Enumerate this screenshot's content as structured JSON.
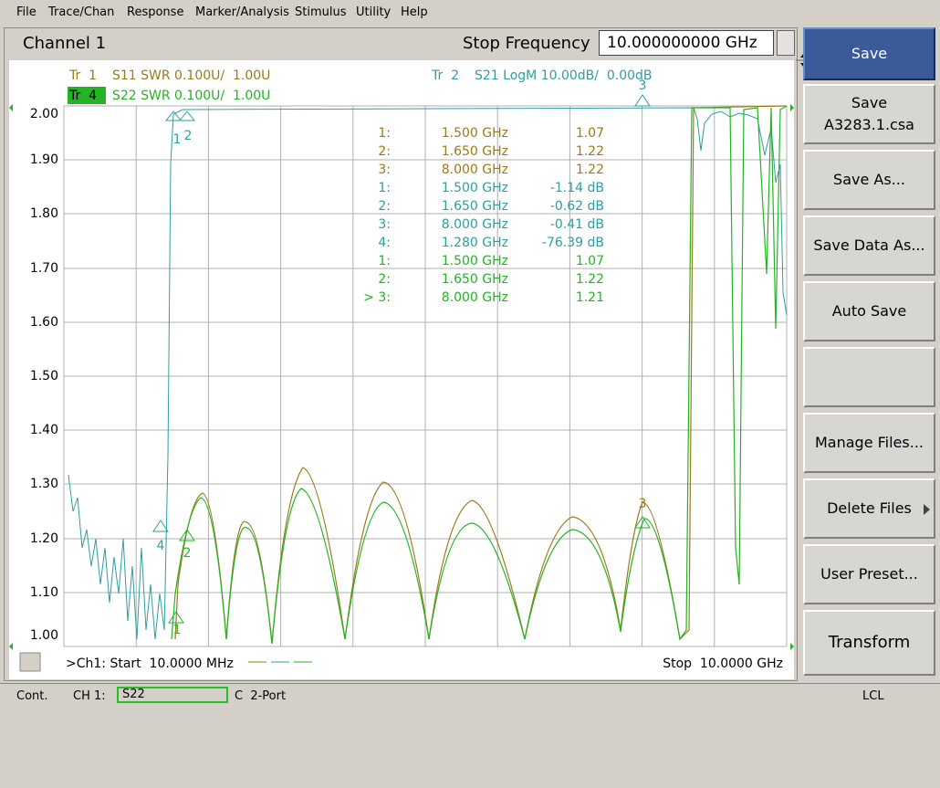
{
  "menu": [
    "File",
    "Trace/Chan",
    "Response",
    "Marker/Analysis",
    "Stimulus",
    "Utility",
    "Help"
  ],
  "channel": {
    "title": "Channel 1",
    "parameter_label": "Stop Frequency",
    "parameter_value": "10.000000000 GHz"
  },
  "trace_labels": [
    {
      "label": "Tr  1",
      "text": "S11 SWR 0.100U/  1.00U"
    },
    {
      "label": "Tr  4",
      "text": "S22 SWR 0.100U/  1.00U"
    },
    {
      "label": "Tr  2",
      "text": "S21 LogM 10.00dB/  0.00dB"
    }
  ],
  "y_axis": [
    "2.00",
    "1.90",
    "1.80",
    "1.70",
    "1.60",
    "1.50",
    "1.40",
    "1.30",
    "1.20",
    "1.10",
    "1.00"
  ],
  "plot_markers": [
    "1",
    "2",
    "3",
    "4",
    "1",
    "2",
    "3"
  ],
  "marker_table": [
    [
      "1:",
      "1.500 GHz",
      "1.07"
    ],
    [
      "2:",
      "1.650 GHz",
      "1.22"
    ],
    [
      "3:",
      "8.000 GHz",
      "1.22"
    ],
    [
      "1:",
      "1.500 GHz",
      "-1.14 dB"
    ],
    [
      "2:",
      "1.650 GHz",
      "-0.62 dB"
    ],
    [
      "3:",
      "8.000 GHz",
      "-0.41 dB"
    ],
    [
      "4:",
      "1.280 GHz",
      "-76.39 dB"
    ],
    [
      "1:",
      "1.500 GHz",
      "1.07"
    ],
    [
      "2:",
      "1.650 GHz",
      "1.22"
    ],
    [
      "> 3:",
      "8.000 GHz",
      "1.21"
    ]
  ],
  "footer": {
    "channel_number": "1",
    "start": ">Ch1: Start  10.0000 MHz",
    "stop": "Stop  10.0000 GHz"
  },
  "softkeys": [
    [
      "Save"
    ],
    [
      "Save",
      "A3283.1.csa"
    ],
    [
      "Save As..."
    ],
    [
      "Save Data As..."
    ],
    [
      "Auto Save"
    ],
    [
      "Manage Files..."
    ],
    [
      "Delete Files"
    ],
    [
      "User Preset..."
    ],
    [
      "Transform"
    ]
  ],
  "status": {
    "mode": "Cont.",
    "channel": "CH 1:",
    "parameter": "S22",
    "calibration": "C  2-Port",
    "control": "LCL"
  }
}
